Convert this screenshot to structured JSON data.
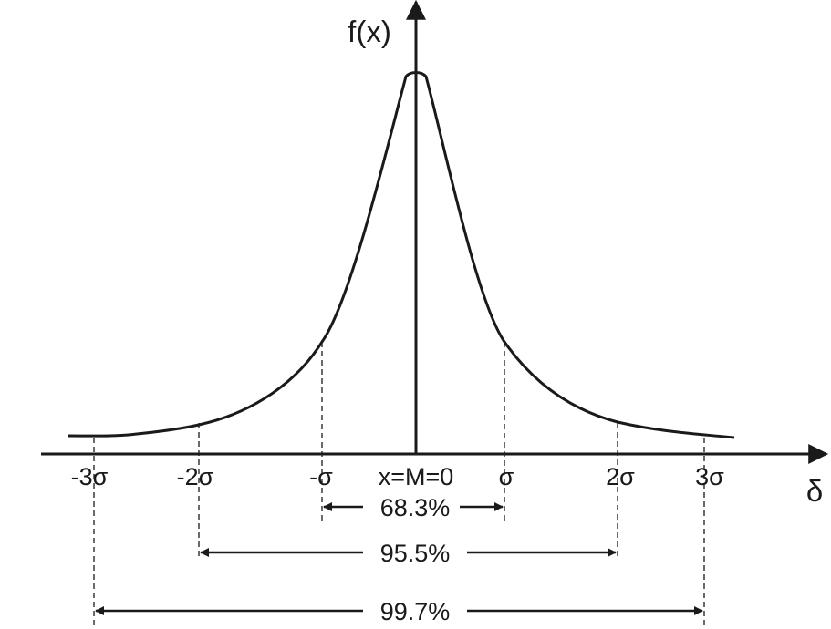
{
  "axes": {
    "y_label": "f(x)",
    "x_label": "δ"
  },
  "ticks": [
    {
      "id": "m3",
      "label": "-3σ"
    },
    {
      "id": "m2",
      "label": "-2σ"
    },
    {
      "id": "m1",
      "label": "-σ"
    },
    {
      "id": "zero",
      "label": "x=M=0"
    },
    {
      "id": "p1",
      "label": "σ"
    },
    {
      "id": "p2",
      "label": "2σ"
    },
    {
      "id": "p3",
      "label": "3σ"
    }
  ],
  "ranges": [
    {
      "id": "one_sigma",
      "label": "68.3%"
    },
    {
      "id": "two_sigma",
      "label": "95.5%"
    },
    {
      "id": "three_sigma",
      "label": "99.7%"
    }
  ]
}
